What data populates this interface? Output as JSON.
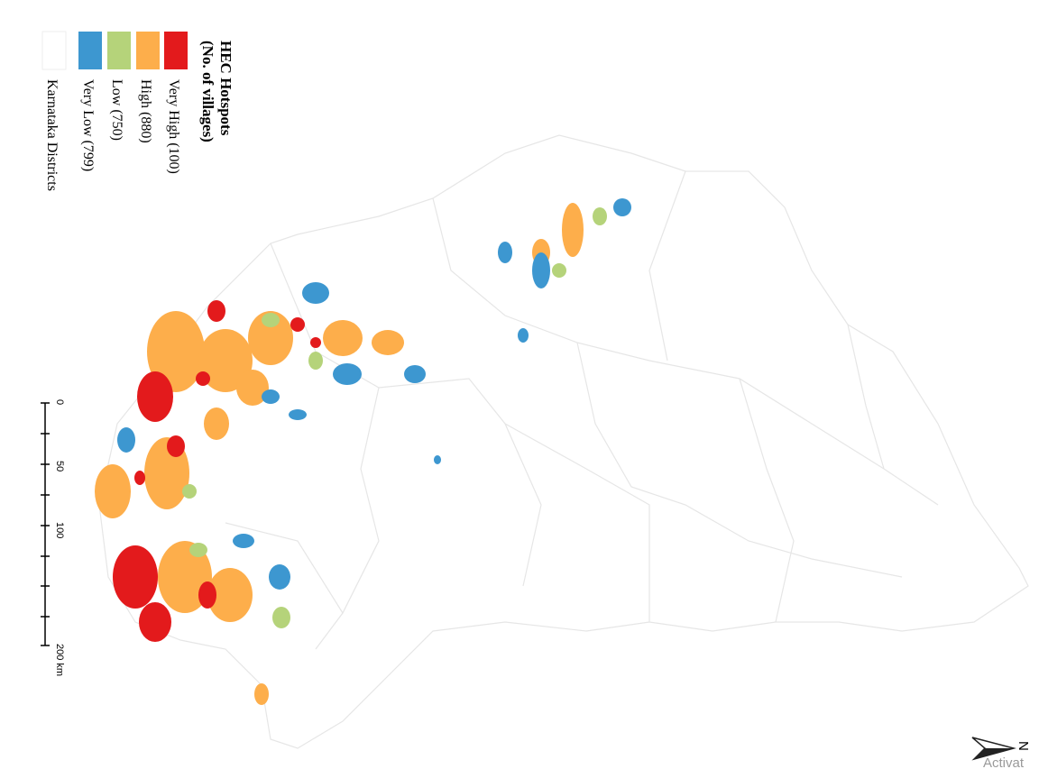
{
  "legend": {
    "title": "HEC Hotspots",
    "subtitle": "(No. of villages)",
    "items": [
      {
        "label": "Very High (100)",
        "color": "#e31a1c"
      },
      {
        "label": "High (880)",
        "color": "#fdae4b"
      },
      {
        "label": "Low (750)",
        "color": "#b5d37a"
      },
      {
        "label": "Very Low (799)",
        "color": "#3d97d0"
      },
      {
        "label": "Karnataka Districts",
        "color": "#ffffff"
      }
    ]
  },
  "scale_bar": {
    "ticks": [
      "0",
      "50",
      "100",
      "200 km"
    ]
  },
  "north_arrow": {
    "label": "N"
  },
  "watermark": "Activat"
}
